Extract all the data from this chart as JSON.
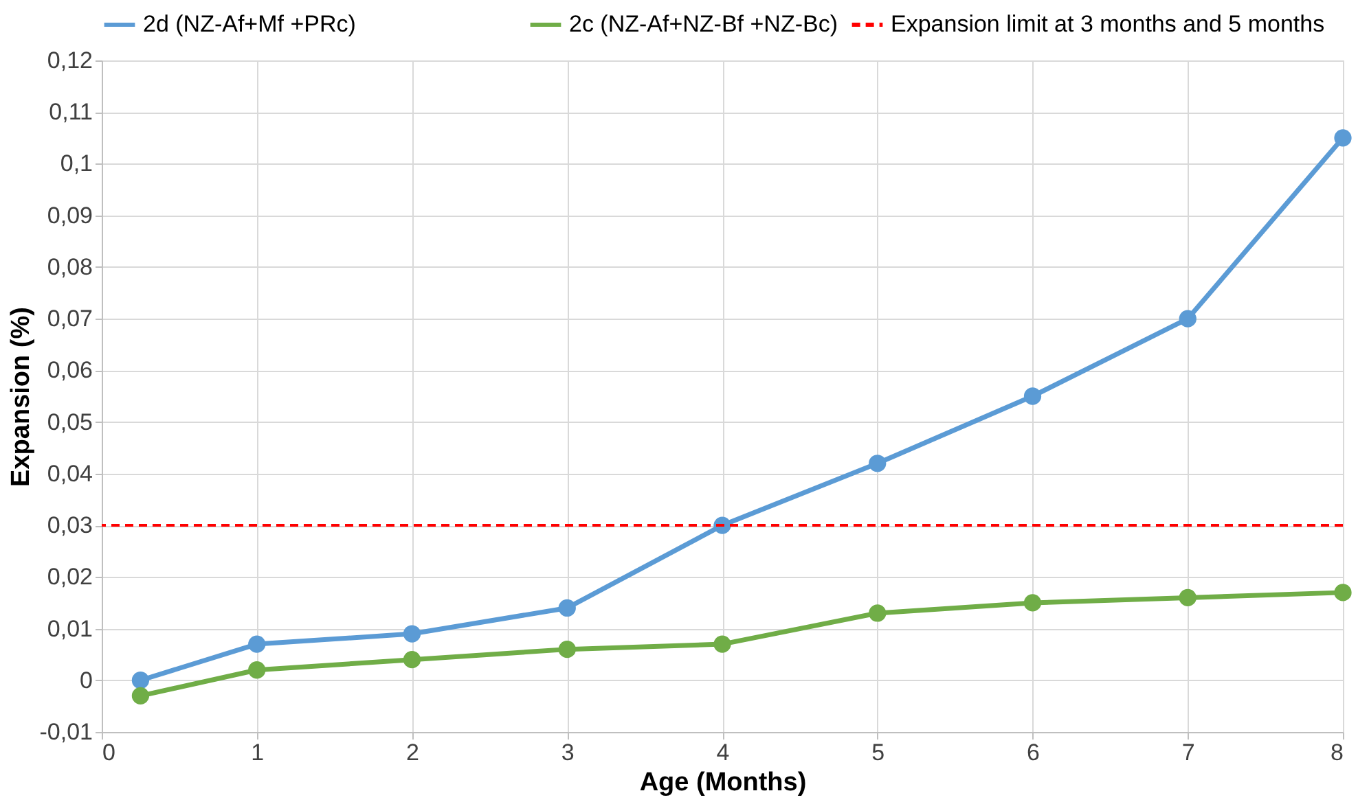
{
  "chart_data": {
    "type": "line",
    "xlabel": "Age (Months)",
    "ylabel": "Expansion (%)",
    "series": [
      {
        "name": "2d (NZ-Af+Mf +PRc)",
        "color": "#5b9bd5",
        "x": [
          0.25,
          1,
          2,
          3,
          4,
          5,
          6,
          7,
          8
        ],
        "values": [
          0,
          0.007,
          0.009,
          0.014,
          0.03,
          0.042,
          0.055,
          0.07,
          0.105
        ]
      },
      {
        "name": "2c (NZ-Af+NZ-Bf +NZ-Bc)",
        "color": "#70ad47",
        "x": [
          0.25,
          1,
          2,
          3,
          4,
          5,
          6,
          7,
          8
        ],
        "values": [
          -0.003,
          0.002,
          0.004,
          0.006,
          0.007,
          0.013,
          0.015,
          0.016,
          0.017
        ]
      }
    ],
    "ref_lines": [
      {
        "axis": "y",
        "value": 0.03,
        "label": "Expansion limit at 3 months and 5 months",
        "color": "#ff0000",
        "line_style": "dashed"
      }
    ],
    "xlim": [
      0,
      8
    ],
    "xticks": [
      0,
      1,
      2,
      3,
      4,
      5,
      6,
      7,
      8
    ],
    "ylim": [
      -0.01,
      0.12
    ],
    "yticks": [
      {
        "value": -0.01,
        "label": "-0,01"
      },
      {
        "value": 0,
        "label": "0"
      },
      {
        "value": 0.01,
        "label": "0,01"
      },
      {
        "value": 0.02,
        "label": "0,02"
      },
      {
        "value": 0.03,
        "label": "0,03"
      },
      {
        "value": 0.04,
        "label": "0,04"
      },
      {
        "value": 0.05,
        "label": "0,05"
      },
      {
        "value": 0.06,
        "label": "0,06"
      },
      {
        "value": 0.07,
        "label": "0,07"
      },
      {
        "value": 0.08,
        "label": "0,08"
      },
      {
        "value": 0.09,
        "label": "0,09"
      },
      {
        "value": 0.1,
        "label": "0,1"
      },
      {
        "value": 0.11,
        "label": "0,11"
      },
      {
        "value": 0.12,
        "label": "0,12"
      }
    ],
    "grid": true,
    "legend": "top",
    "marker": "circle",
    "line_style": "solid"
  }
}
